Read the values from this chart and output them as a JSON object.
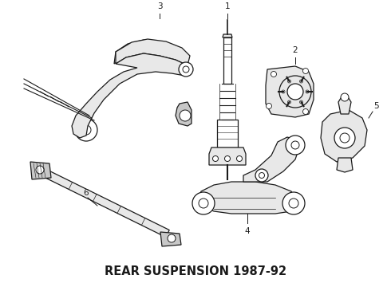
{
  "title": "REAR SUSPENSION 1987-92",
  "title_fontsize": 10.5,
  "title_fontweight": "bold",
  "background_color": "#ffffff",
  "line_color": "#1a1a1a",
  "fig_width": 4.9,
  "fig_height": 3.6,
  "dpi": 100
}
